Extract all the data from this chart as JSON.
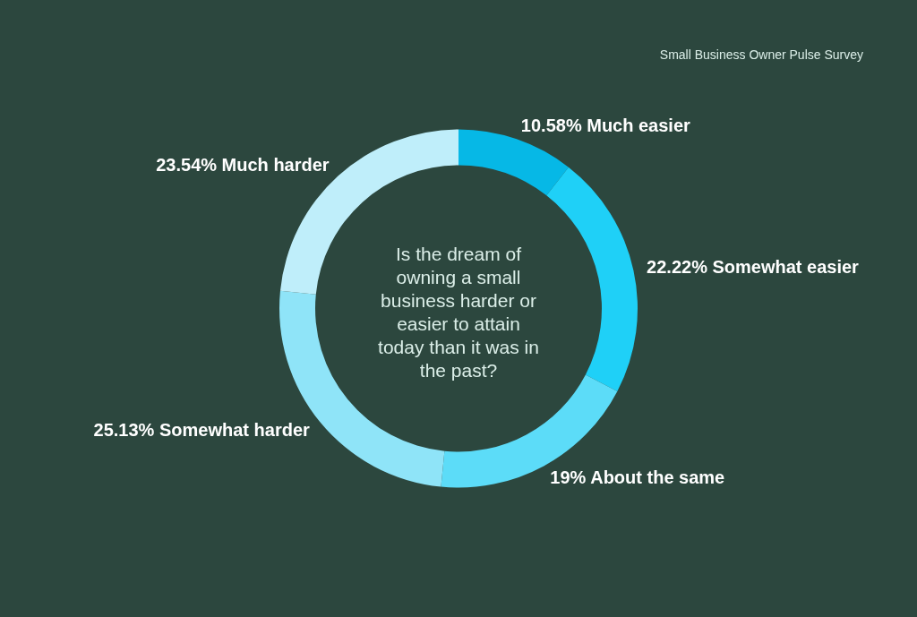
{
  "chart_data": {
    "type": "donut",
    "title": "Small Business Owner Pulse Survey",
    "subtitle": "Is the dream of\nowning a small\nbusiness harder or\neasier to attain\ntoday than it was in\nthe past?",
    "categories": [
      "Much easier",
      "Somewhat easier",
      "About the same",
      "Somewhat harder",
      "Much harder"
    ],
    "values": [
      10.58,
      22.22,
      19,
      25.13,
      23.54
    ],
    "value_labels": [
      "10.58%",
      "22.22%",
      "19%",
      "25.13%",
      "23.54%"
    ],
    "colors": [
      "#06b8e6",
      "#1fd0f7",
      "#5cdcf8",
      "#8fe4f8",
      "#bfeefa"
    ]
  }
}
